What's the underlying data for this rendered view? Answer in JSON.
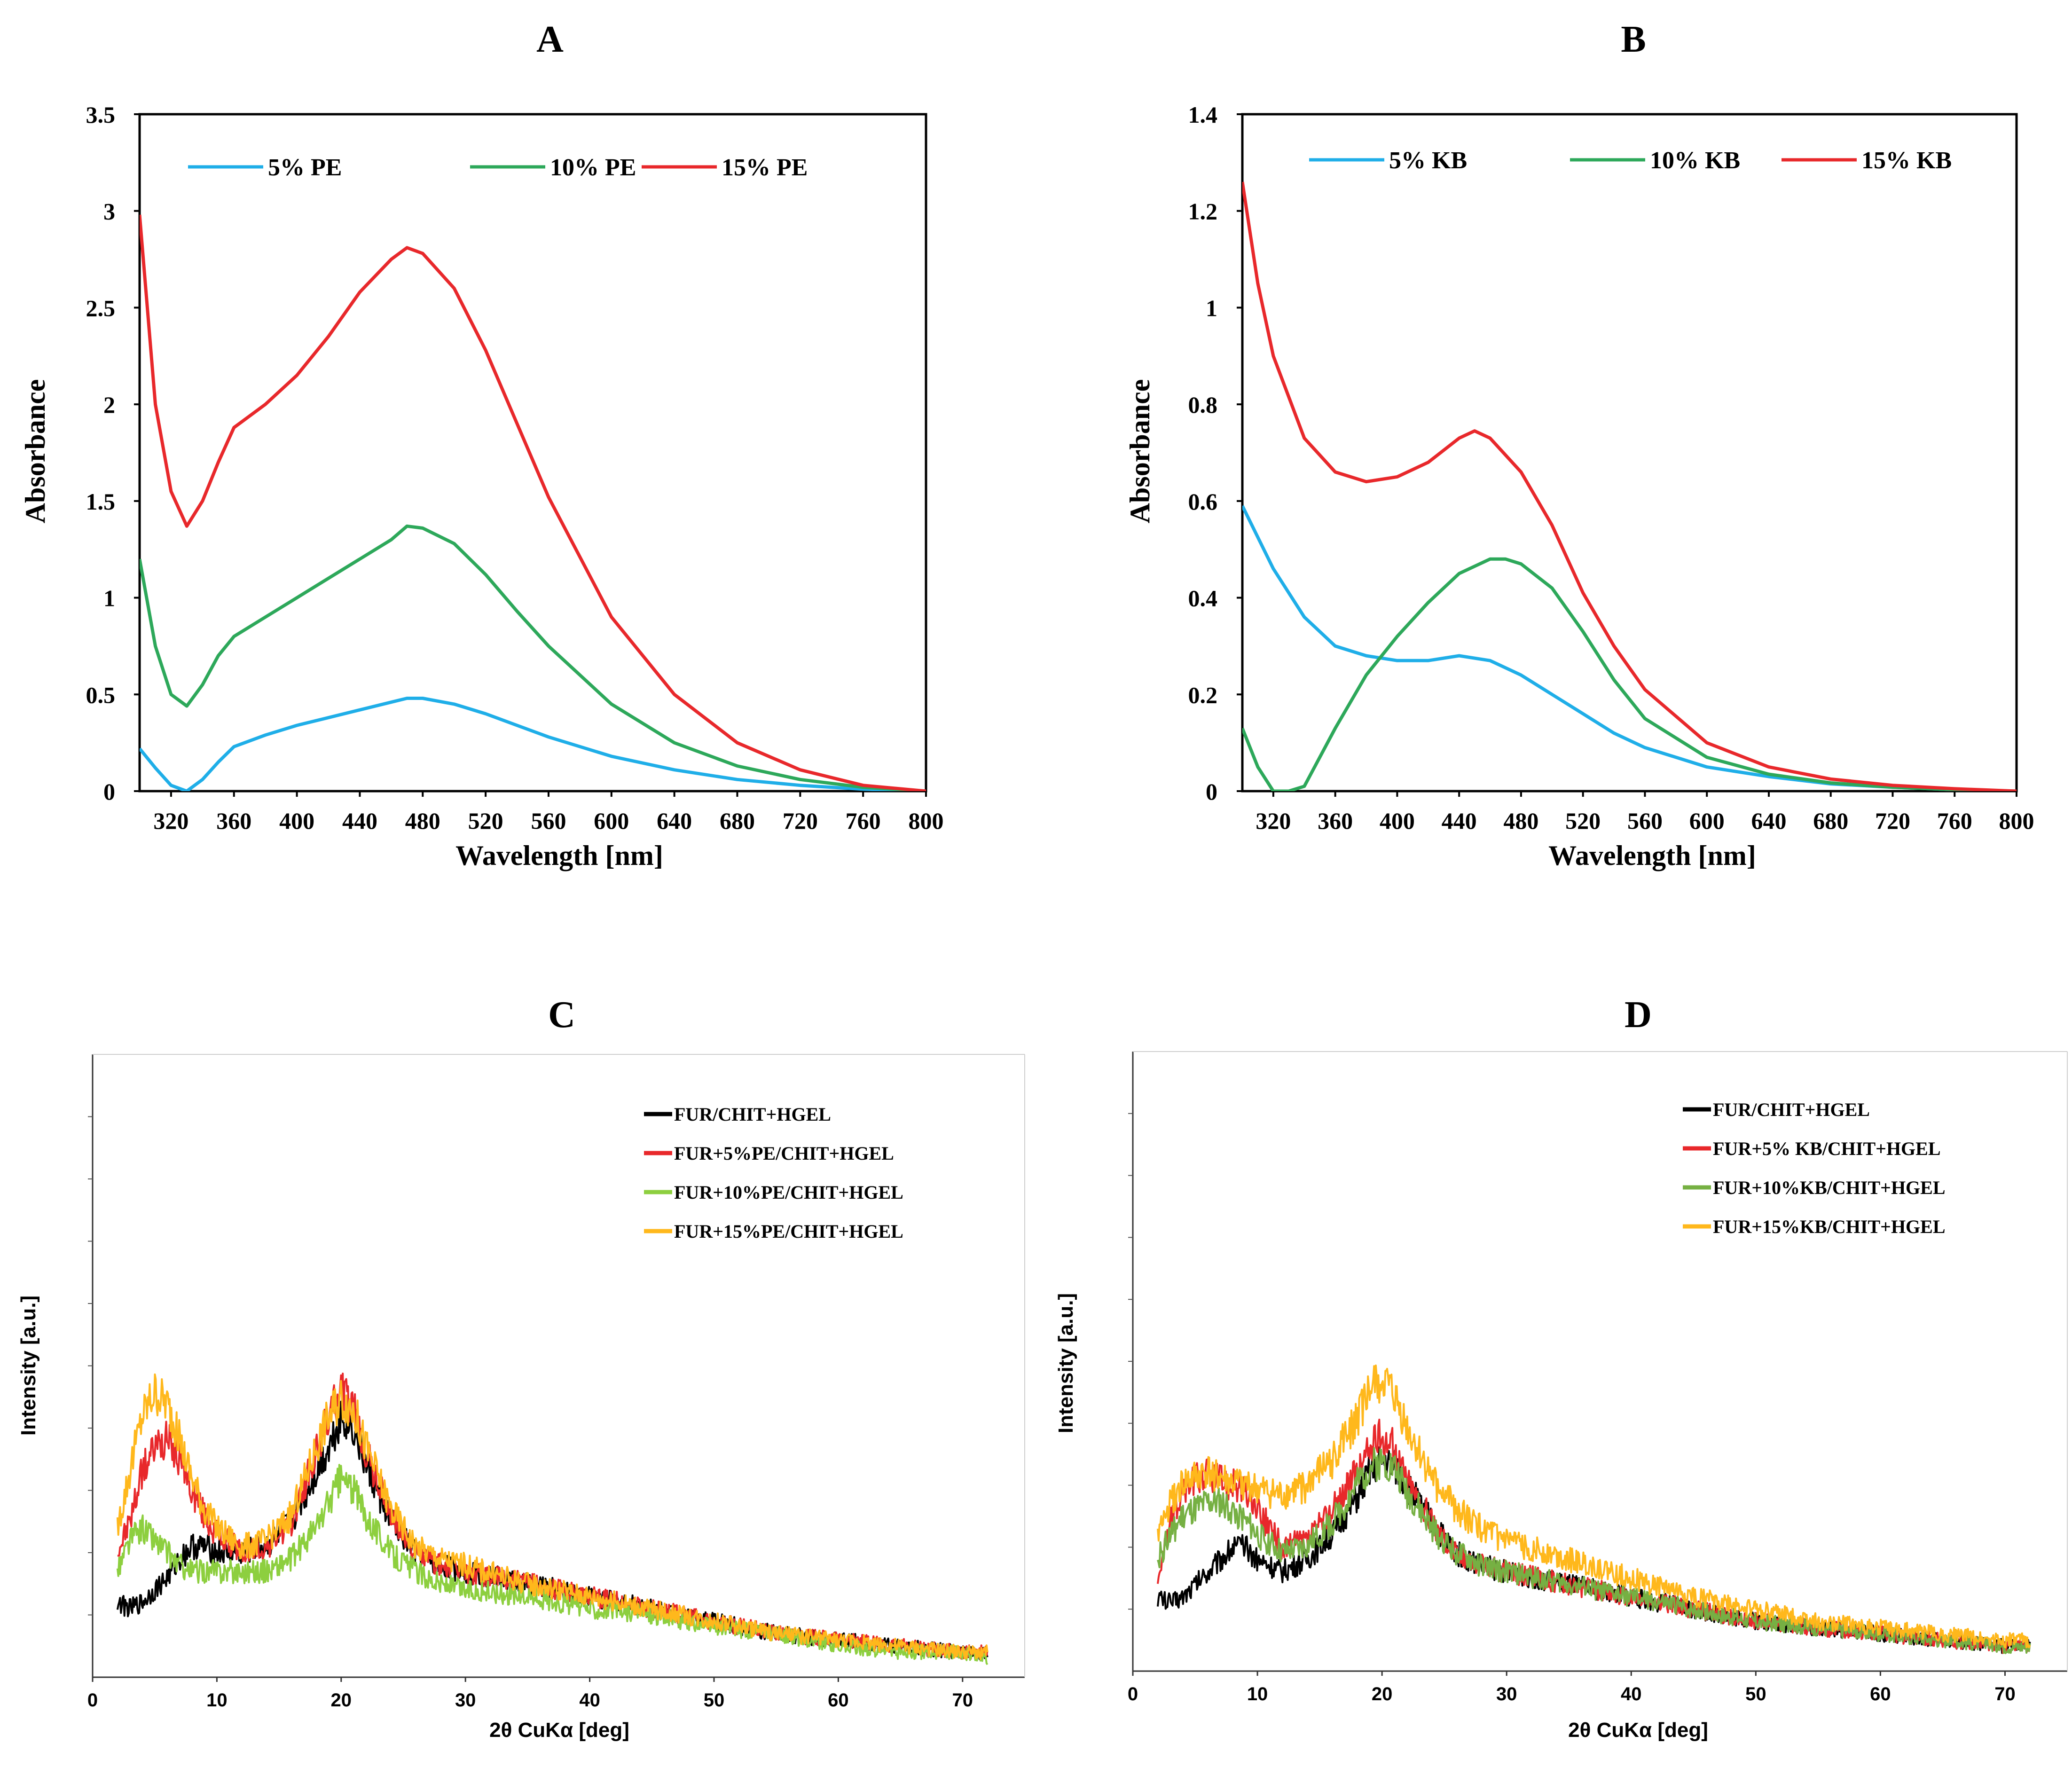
{
  "chart_data": [
    {
      "id": "A",
      "type": "line",
      "panel_label": "A",
      "title": "",
      "xlabel": "Wavelength [nm]",
      "ylabel": "Absorbance",
      "xlim": [
        300,
        800
      ],
      "ylim": [
        0,
        3.5
      ],
      "xticks": [
        "320",
        "360",
        "400",
        "440",
        "480",
        "520",
        "560",
        "600",
        "640",
        "680",
        "720",
        "760",
        "800"
      ],
      "yticks": [
        "0",
        "0.5",
        "1",
        "1.5",
        "2",
        "2.5",
        "3",
        "3.5"
      ],
      "legend_position": "top",
      "series": [
        {
          "name": "5% PE",
          "color": "#1FAEE8",
          "x": [
            300,
            310,
            320,
            330,
            340,
            350,
            360,
            380,
            400,
            420,
            440,
            460,
            470,
            480,
            500,
            520,
            540,
            560,
            600,
            640,
            680,
            720,
            760,
            800
          ],
          "y": [
            0.22,
            0.12,
            0.03,
            0.0,
            0.06,
            0.15,
            0.23,
            0.29,
            0.34,
            0.38,
            0.42,
            0.46,
            0.48,
            0.48,
            0.45,
            0.4,
            0.34,
            0.28,
            0.18,
            0.11,
            0.06,
            0.03,
            0.01,
            0.0
          ]
        },
        {
          "name": "10% PE",
          "color": "#2DA85A",
          "x": [
            300,
            310,
            320,
            330,
            340,
            350,
            360,
            380,
            400,
            420,
            440,
            460,
            470,
            480,
            500,
            520,
            540,
            560,
            600,
            640,
            680,
            720,
            760,
            800
          ],
          "y": [
            1.2,
            0.75,
            0.5,
            0.44,
            0.55,
            0.7,
            0.8,
            0.9,
            1.0,
            1.1,
            1.2,
            1.3,
            1.37,
            1.36,
            1.28,
            1.12,
            0.93,
            0.75,
            0.45,
            0.25,
            0.13,
            0.06,
            0.02,
            0.0
          ]
        },
        {
          "name": "15% PE",
          "color": "#E8282B",
          "x": [
            300,
            310,
            320,
            330,
            340,
            350,
            360,
            380,
            400,
            420,
            440,
            460,
            470,
            480,
            500,
            520,
            540,
            560,
            600,
            640,
            680,
            720,
            760,
            800
          ],
          "y": [
            2.98,
            2.0,
            1.55,
            1.37,
            1.5,
            1.7,
            1.88,
            2.0,
            2.15,
            2.35,
            2.58,
            2.75,
            2.81,
            2.78,
            2.6,
            2.28,
            1.9,
            1.52,
            0.9,
            0.5,
            0.25,
            0.11,
            0.03,
            0.0
          ]
        }
      ]
    },
    {
      "id": "B",
      "type": "line",
      "panel_label": "B",
      "title": "",
      "xlabel": "Wavelength [nm]",
      "ylabel": "Absorbance",
      "xlim": [
        300,
        800
      ],
      "ylim": [
        0,
        1.4
      ],
      "xticks": [
        "320",
        "360",
        "400",
        "440",
        "480",
        "520",
        "560",
        "600",
        "640",
        "680",
        "720",
        "760",
        "800"
      ],
      "yticks": [
        "0",
        "0.2",
        "0.4",
        "0.6",
        "0.8",
        "1",
        "1.2",
        "1.4"
      ],
      "legend_position": "top",
      "series": [
        {
          "name": "5% KB",
          "color": "#1FAEE8",
          "x": [
            300,
            320,
            340,
            360,
            380,
            400,
            420,
            440,
            460,
            480,
            500,
            520,
            540,
            560,
            600,
            640,
            680,
            720,
            760,
            800
          ],
          "y": [
            0.59,
            0.46,
            0.36,
            0.3,
            0.28,
            0.27,
            0.27,
            0.28,
            0.27,
            0.24,
            0.2,
            0.16,
            0.12,
            0.09,
            0.05,
            0.03,
            0.015,
            0.008,
            0.003,
            0.0
          ]
        },
        {
          "name": "10% KB",
          "color": "#2DA85A",
          "x": [
            300,
            310,
            320,
            330,
            340,
            360,
            380,
            400,
            420,
            440,
            460,
            470,
            480,
            500,
            520,
            540,
            560,
            600,
            640,
            680,
            720,
            760,
            800
          ],
          "y": [
            0.13,
            0.05,
            0.0,
            0.0,
            0.01,
            0.13,
            0.24,
            0.32,
            0.39,
            0.45,
            0.48,
            0.48,
            0.47,
            0.42,
            0.33,
            0.23,
            0.15,
            0.07,
            0.035,
            0.017,
            0.008,
            0.003,
            0.0
          ]
        },
        {
          "name": "15% KB",
          "color": "#E8282B",
          "x": [
            300,
            310,
            320,
            340,
            360,
            380,
            400,
            420,
            440,
            450,
            460,
            480,
            500,
            520,
            540,
            560,
            600,
            640,
            680,
            720,
            760,
            800
          ],
          "y": [
            1.26,
            1.05,
            0.9,
            0.73,
            0.66,
            0.64,
            0.65,
            0.68,
            0.73,
            0.745,
            0.73,
            0.66,
            0.55,
            0.41,
            0.3,
            0.21,
            0.1,
            0.05,
            0.025,
            0.012,
            0.005,
            0.0
          ]
        }
      ]
    },
    {
      "id": "C",
      "type": "line",
      "panel_label": "C",
      "title": "",
      "xlabel": "2θ CuKα [deg]",
      "ylabel": "Intensity [a.u.]",
      "xlim": [
        0,
        75
      ],
      "ylim": [
        0,
        100
      ],
      "xticks": [
        "0",
        "10",
        "20",
        "30",
        "40",
        "50",
        "60",
        "70"
      ],
      "legend_position": "top-right",
      "series": [
        {
          "name": "FUR/CHIT+HGEL",
          "color": "#000000",
          "x": [
            2,
            3,
            4,
            5,
            6,
            7,
            8,
            9,
            10,
            12,
            14,
            16,
            18,
            19,
            20,
            21,
            22,
            24,
            26,
            28,
            30,
            35,
            40,
            45,
            50,
            55,
            60,
            65,
            70,
            72
          ],
          "y": [
            12,
            11,
            12,
            14,
            16,
            19,
            21,
            21,
            20,
            20,
            21,
            25,
            33,
            37,
            42,
            40,
            34,
            25,
            20,
            18,
            17,
            15,
            13,
            11,
            9,
            7,
            6,
            5,
            4,
            4
          ]
        },
        {
          "name": "FUR+5%PE/CHIT+HGEL",
          "color": "#E8282B",
          "x": [
            2,
            3,
            4,
            5,
            6,
            7,
            8,
            9,
            10,
            12,
            14,
            16,
            18,
            19,
            20,
            21,
            22,
            24,
            26,
            28,
            30,
            35,
            40,
            45,
            50,
            55,
            60,
            65,
            70,
            72
          ],
          "y": [
            20,
            25,
            33,
            37,
            38,
            35,
            30,
            26,
            23,
            20,
            21,
            25,
            36,
            42,
            46,
            43,
            36,
            26,
            20,
            18,
            17,
            15,
            13,
            11,
            9,
            7,
            6,
            5,
            4,
            4
          ]
        },
        {
          "name": "FUR+10%PE/CHIT+HGEL",
          "color": "#8DCF3F",
          "x": [
            2,
            3,
            4,
            5,
            6,
            7,
            8,
            9,
            10,
            12,
            14,
            16,
            18,
            19,
            20,
            21,
            22,
            24,
            26,
            28,
            30,
            35,
            40,
            45,
            50,
            55,
            60,
            65,
            70,
            72
          ],
          "y": [
            17,
            22,
            24,
            22,
            20,
            18,
            17,
            17,
            17,
            17,
            17,
            19,
            24,
            28,
            32,
            30,
            26,
            20,
            17,
            15,
            14,
            13,
            11,
            10,
            8,
            7,
            5,
            4,
            4,
            3
          ]
        },
        {
          "name": "FUR+15%PE/CHIT+HGEL",
          "color": "#FFB81C",
          "x": [
            2,
            3,
            4,
            5,
            6,
            7,
            8,
            9,
            10,
            12,
            14,
            16,
            18,
            19,
            20,
            21,
            22,
            24,
            26,
            28,
            30,
            35,
            40,
            45,
            50,
            55,
            60,
            65,
            70,
            72
          ],
          "y": [
            24,
            33,
            42,
            46,
            44,
            38,
            32,
            27,
            24,
            21,
            22,
            26,
            37,
            42,
            45,
            43,
            37,
            27,
            21,
            19,
            18,
            15,
            13,
            11,
            9,
            7,
            6,
            5,
            4,
            4
          ]
        }
      ]
    },
    {
      "id": "D",
      "type": "line",
      "panel_label": "D",
      "title": "",
      "xlabel": "2θ CuKα [deg]",
      "ylabel": "Intensity [a.u.]",
      "xlim": [
        0,
        75
      ],
      "ylim": [
        0,
        100
      ],
      "xticks": [
        "0",
        "10",
        "20",
        "30",
        "40",
        "50",
        "60",
        "70"
      ],
      "legend_position": "top-right",
      "series": [
        {
          "name": "FUR/CHIT+HGEL",
          "color": "#000000",
          "x": [
            2,
            3,
            4,
            5,
            6,
            7,
            8,
            9,
            10,
            12,
            14,
            16,
            18,
            19,
            20,
            21,
            22,
            24,
            26,
            28,
            30,
            35,
            40,
            45,
            50,
            55,
            60,
            65,
            70,
            72
          ],
          "y": [
            12,
            11,
            12,
            14,
            16,
            18,
            20,
            20,
            18,
            16,
            18,
            22,
            28,
            32,
            34,
            33,
            30,
            24,
            19,
            17,
            16,
            14,
            12,
            10,
            8,
            7,
            6,
            5,
            4,
            4
          ]
        },
        {
          "name": "FUR+5% KB/CHIT+HGEL",
          "color": "#E8282B",
          "x": [
            2,
            3,
            4,
            5,
            6,
            7,
            8,
            9,
            10,
            12,
            14,
            16,
            18,
            19,
            20,
            21,
            22,
            24,
            26,
            28,
            30,
            35,
            40,
            45,
            50,
            55,
            60,
            65,
            70,
            72
          ],
          "y": [
            15,
            24,
            29,
            31,
            32,
            31,
            30,
            29,
            26,
            20,
            21,
            26,
            32,
            36,
            38,
            36,
            31,
            24,
            19,
            17,
            16,
            14,
            12,
            10,
            8,
            7,
            6,
            5,
            4,
            4
          ]
        },
        {
          "name": "FUR+10%KB/CHIT+HGEL",
          "color": "#76B043",
          "x": [
            2,
            3,
            4,
            5,
            6,
            7,
            8,
            9,
            10,
            12,
            14,
            16,
            18,
            19,
            20,
            21,
            22,
            24,
            26,
            28,
            30,
            35,
            40,
            45,
            50,
            55,
            60,
            65,
            70,
            72
          ],
          "y": [
            18,
            22,
            25,
            26,
            27,
            27,
            26,
            24,
            22,
            19,
            20,
            24,
            30,
            33,
            34,
            33,
            29,
            23,
            19,
            17,
            16,
            14,
            12,
            10,
            8,
            7,
            6,
            5,
            4,
            4
          ]
        },
        {
          "name": "FUR+15%KB/CHIT+HGEL",
          "color": "#FFB81C",
          "x": [
            2,
            3,
            4,
            5,
            6,
            7,
            8,
            9,
            10,
            12,
            14,
            16,
            18,
            19,
            20,
            21,
            22,
            24,
            26,
            28,
            30,
            35,
            40,
            45,
            50,
            55,
            60,
            65,
            70,
            72
          ],
          "y": [
            22,
            27,
            30,
            31,
            32,
            31,
            30,
            30,
            29,
            28,
            30,
            34,
            41,
            45,
            47,
            44,
            39,
            31,
            26,
            23,
            21,
            18,
            15,
            12,
            10,
            8,
            7,
            6,
            5,
            5
          ]
        }
      ]
    }
  ]
}
